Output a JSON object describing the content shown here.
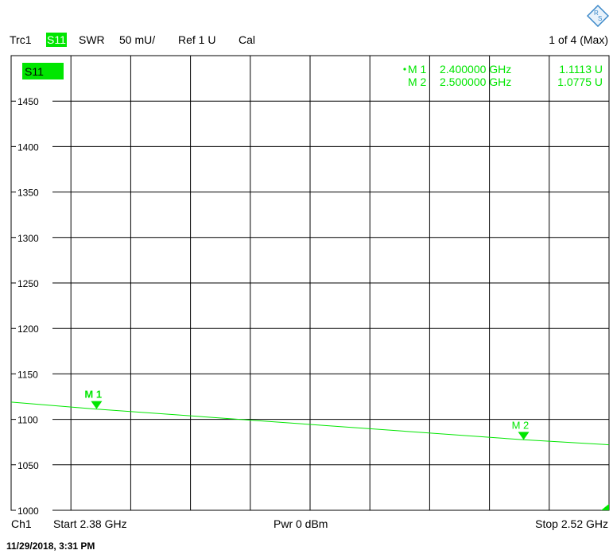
{
  "header": {
    "trace": "Trc1",
    "param": "S11",
    "format": "SWR",
    "scale": "50 mU/",
    "ref": "Ref 1 U",
    "cal": "Cal",
    "window": "1 of 4 (Max)"
  },
  "footer": {
    "channel": "Ch1",
    "start": "Start  2.38 GHz",
    "power": "Pwr  0 dBm",
    "stop": "Stop  2.52 GHz"
  },
  "timestamp": "11/29/2018, 3:31 PM",
  "logo_text": "RS",
  "colors": {
    "trace": "#00e600",
    "grid": "#000000",
    "background": "#ffffff"
  },
  "chart_data": {
    "type": "line",
    "trace_label": "S11",
    "x_unit": "GHz",
    "xlim": [
      2.38,
      2.52
    ],
    "ylim": [
      1000,
      1450
    ],
    "yticks": [
      "1450",
      "1400",
      "1350",
      "1300",
      "1250",
      "1200",
      "1150",
      "1100",
      "1050",
      "1000"
    ],
    "x_divisions": 10,
    "series": [
      {
        "x": [
          2.38,
          2.4,
          2.5,
          2.52
        ],
        "y": [
          1119,
          1111.3,
          1077.5,
          1072
        ]
      }
    ],
    "markers": [
      {
        "name": "M 1",
        "label": "M 1",
        "x": 2.4,
        "y": 1111.3,
        "freq": "2.400000 GHz",
        "value": "1.1113 U",
        "active": true
      },
      {
        "name": "M 2",
        "label": "M 2",
        "x": 2.5,
        "y": 1077.5,
        "freq": "2.500000 GHz",
        "value": "1.0775 U",
        "active": false
      }
    ]
  }
}
